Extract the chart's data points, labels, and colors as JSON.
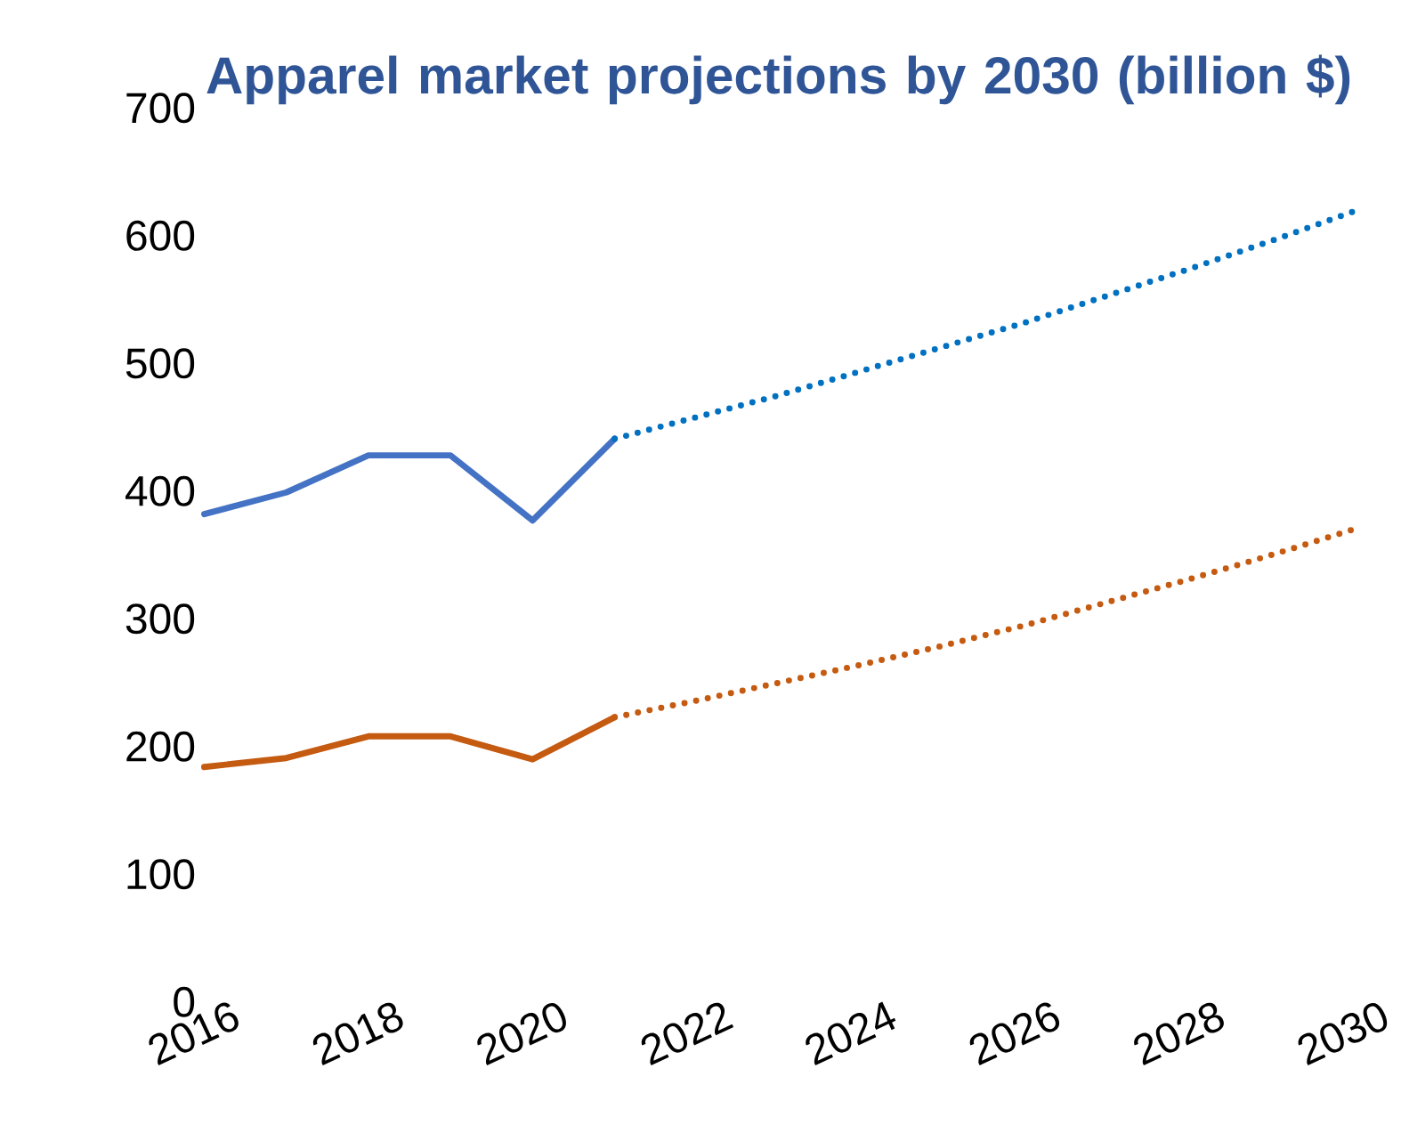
{
  "chart_data": {
    "type": "line",
    "title": "Apparel market projections by 2030 (billion $)",
    "xlim": [
      2016,
      2030
    ],
    "xticks": [
      2016,
      2018,
      2020,
      2022,
      2024,
      2026,
      2028,
      2030
    ],
    "ylim": [
      0,
      700
    ],
    "yticks": [
      0,
      100,
      200,
      300,
      400,
      500,
      600,
      700
    ],
    "series": [
      {
        "color": "#4472c4",
        "line_style": "solid",
        "x": [
          2016,
          2017,
          2018,
          2019,
          2020,
          2021
        ],
        "values": [
          382,
          399,
          428,
          428,
          377,
          441
        ]
      },
      {
        "color": "#0070c0",
        "line_style": "dotted",
        "x": [
          2021,
          2022,
          2023,
          2024,
          2025,
          2026,
          2027,
          2028,
          2029,
          2030
        ],
        "values": [
          441,
          458,
          475,
          494,
          513,
          532,
          553,
          574,
          596,
          619
        ]
      },
      {
        "color": "#c55a11",
        "line_style": "solid",
        "x": [
          2016,
          2017,
          2018,
          2019,
          2020,
          2021
        ],
        "values": [
          184,
          191,
          208,
          208,
          190,
          223
        ]
      },
      {
        "color": "#c55a11",
        "line_style": "dotted",
        "x": [
          2021,
          2022,
          2023,
          2024,
          2025,
          2026,
          2027,
          2028,
          2029,
          2030
        ],
        "values": [
          223,
          236,
          250,
          264,
          279,
          295,
          313,
          331,
          350,
          370
        ]
      }
    ]
  }
}
